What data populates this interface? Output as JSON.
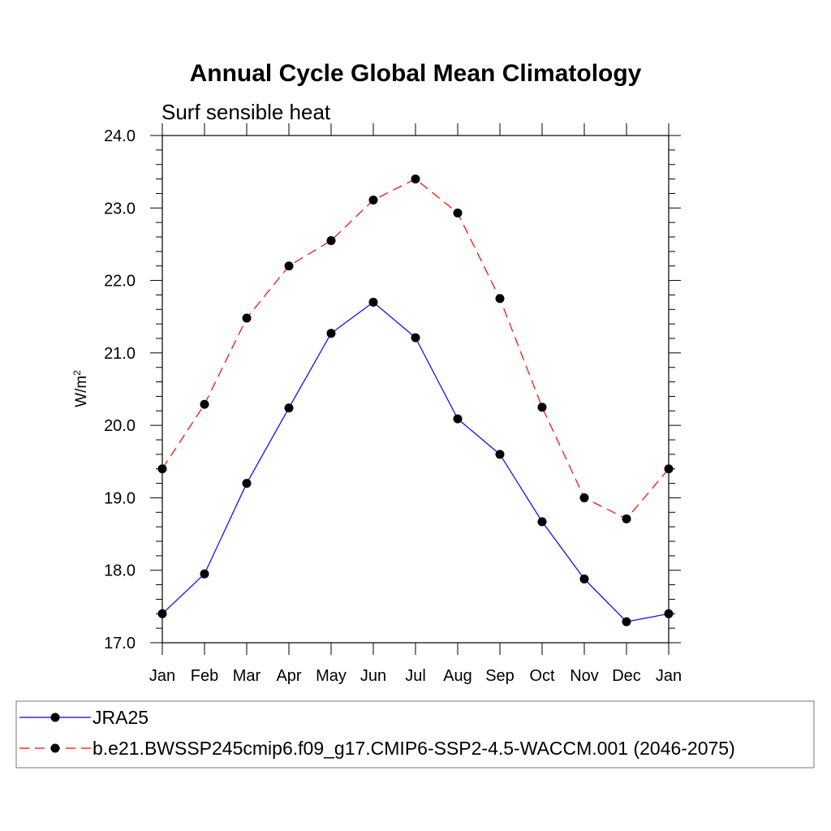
{
  "chart_data": {
    "type": "line",
    "title": "Annual Cycle Global Mean Climatology",
    "subtitle": "Surf sensible heat",
    "ylabel": "W/m",
    "ylabel_superscript": "2",
    "xlabel": "",
    "ylim": [
      17.0,
      24.0
    ],
    "yticks": [
      "17.0",
      "18.0",
      "19.0",
      "20.0",
      "21.0",
      "22.0",
      "23.0",
      "24.0"
    ],
    "categories": [
      "Jan",
      "Feb",
      "Mar",
      "Apr",
      "May",
      "Jun",
      "Jul",
      "Aug",
      "Sep",
      "Oct",
      "Nov",
      "Dec",
      "Jan"
    ],
    "series": [
      {
        "name": "JRA25",
        "color": "#0000ff",
        "dash": "solid",
        "marker": "circle",
        "values": [
          17.4,
          17.95,
          19.2,
          20.24,
          21.27,
          21.7,
          21.21,
          20.09,
          19.6,
          18.67,
          17.88,
          17.29,
          17.4
        ]
      },
      {
        "name": "b.e21.BWSSP245cmip6.f09_g17.CMIP6-SSP2-4.5-WACCM.001 (2046-2075)",
        "color": "#ff0000",
        "dash": "dashed",
        "marker": "circle",
        "values": [
          19.4,
          20.29,
          21.48,
          22.2,
          22.55,
          23.11,
          23.4,
          22.93,
          21.75,
          20.25,
          19.0,
          18.71,
          19.4
        ]
      }
    ],
    "grid": false,
    "legend_position": "bottom"
  }
}
